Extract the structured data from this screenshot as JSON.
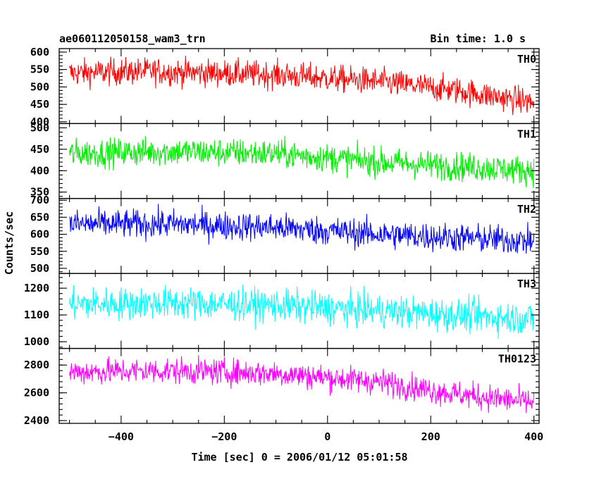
{
  "chart_data": {
    "type": "line",
    "title": "ae060112050158_wam3_trn",
    "subtitle": "Bin time: 1.0 s",
    "xlabel": "Time [sec] 0 = 2006/01/12 05:01:58",
    "ylabel": "Counts/sec",
    "xlim": [
      -520,
      410
    ],
    "xticks": [
      -400,
      -200,
      0,
      200,
      400
    ],
    "x_range": [
      -500,
      400
    ],
    "bin_time_sec": 1.0,
    "panels": [
      {
        "name": "TH0",
        "color": "#ff0000",
        "ylim": [
          395,
          610
        ],
        "yticks": [
          400,
          450,
          500,
          550,
          600
        ],
        "trend": [
          {
            "x": -500,
            "y": 540
          },
          {
            "x": -350,
            "y": 545
          },
          {
            "x": -100,
            "y": 535
          },
          {
            "x": 100,
            "y": 515
          },
          {
            "x": 250,
            "y": 490
          },
          {
            "x": 400,
            "y": 455
          }
        ],
        "noise_amplitude": 35
      },
      {
        "name": "TH1",
        "color": "#00ee00",
        "ylim": [
          335,
          510
        ],
        "yticks": [
          350,
          400,
          450,
          500
        ],
        "trend": [
          {
            "x": -500,
            "y": 440
          },
          {
            "x": -300,
            "y": 445
          },
          {
            "x": -100,
            "y": 440
          },
          {
            "x": 100,
            "y": 420
          },
          {
            "x": 250,
            "y": 410
          },
          {
            "x": 400,
            "y": 400
          }
        ],
        "noise_amplitude": 30
      },
      {
        "name": "TH2",
        "color": "#0000ff",
        "ylim": [
          485,
          705
        ],
        "yticks": [
          500,
          550,
          600,
          650,
          700
        ],
        "trend": [
          {
            "x": -500,
            "y": 630
          },
          {
            "x": -300,
            "y": 630
          },
          {
            "x": -100,
            "y": 620
          },
          {
            "x": 100,
            "y": 600
          },
          {
            "x": 250,
            "y": 590
          },
          {
            "x": 400,
            "y": 580
          }
        ],
        "noise_amplitude": 38
      },
      {
        "name": "TH3",
        "color": "#00ffff",
        "ylim": [
          975,
          1255
        ],
        "yticks": [
          1000,
          1100,
          1200
        ],
        "trend": [
          {
            "x": -500,
            "y": 1140
          },
          {
            "x": -300,
            "y": 1145
          },
          {
            "x": -100,
            "y": 1135
          },
          {
            "x": 100,
            "y": 1115
          },
          {
            "x": 250,
            "y": 1100
          },
          {
            "x": 400,
            "y": 1085
          }
        ],
        "noise_amplitude": 55
      },
      {
        "name": "TH0123",
        "color": "#ff00ff",
        "ylim": [
          2380,
          2920
        ],
        "yticks": [
          2400,
          2600,
          2800
        ],
        "trend": [
          {
            "x": -500,
            "y": 2750
          },
          {
            "x": -300,
            "y": 2760
          },
          {
            "x": -100,
            "y": 2740
          },
          {
            "x": 100,
            "y": 2680
          },
          {
            "x": 250,
            "y": 2590
          },
          {
            "x": 400,
            "y": 2530
          }
        ],
        "noise_amplitude": 85
      }
    ]
  }
}
